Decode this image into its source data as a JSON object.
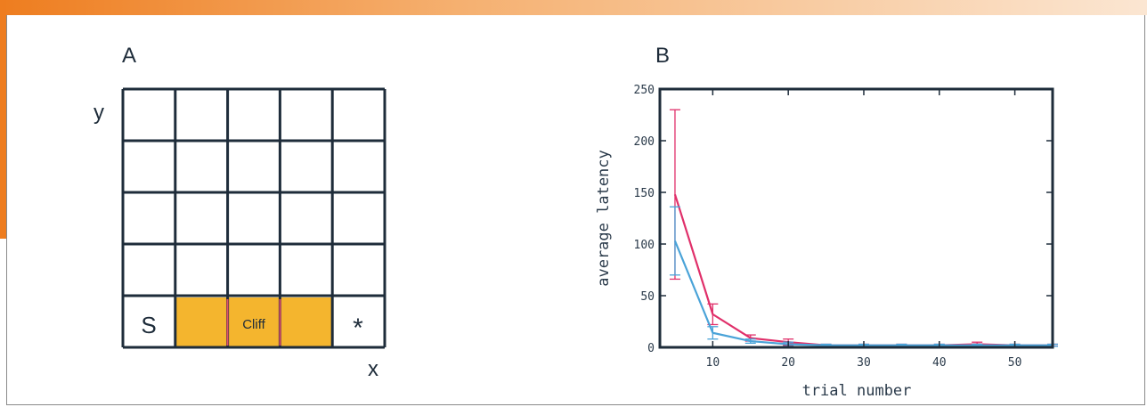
{
  "panel_a": {
    "label": "A",
    "y_axis": "y",
    "x_axis": "x",
    "start_label": "S",
    "cliff_label": "Cliff",
    "goal_label": "*",
    "grid_cols": 5,
    "grid_rows": 5,
    "cliff_color": "#f4b52e",
    "line_color": "#1e2c3a",
    "divider_color": "#e0506a"
  },
  "panel_b": {
    "label": "B",
    "chart_data": {
      "type": "line",
      "xlabel": "trial number",
      "ylabel": "average latency",
      "xlim": [
        3,
        55
      ],
      "ylim": [
        0,
        250
      ],
      "xticks": [
        10,
        20,
        30,
        40,
        50
      ],
      "yticks": [
        0,
        50,
        100,
        150,
        200,
        250
      ],
      "grid": false,
      "series": [
        {
          "color": "#e0306a",
          "x": [
            5,
            10,
            15,
            20,
            25,
            30,
            35,
            40,
            45,
            50,
            55
          ],
          "y": [
            148,
            32,
            9,
            5,
            2,
            2,
            2,
            2,
            3,
            2,
            2
          ],
          "err": [
            82,
            10,
            3,
            3,
            1,
            1,
            1,
            1,
            2,
            1,
            1
          ]
        },
        {
          "color": "#4aa3d8",
          "x": [
            5,
            10,
            15,
            20,
            25,
            30,
            35,
            40,
            45,
            50,
            55
          ],
          "y": [
            103,
            14,
            6,
            3,
            2,
            2,
            2,
            2,
            2,
            2,
            2
          ],
          "err": [
            33,
            6,
            2,
            2,
            1,
            1,
            1,
            1,
            1,
            1,
            1
          ]
        }
      ]
    }
  }
}
